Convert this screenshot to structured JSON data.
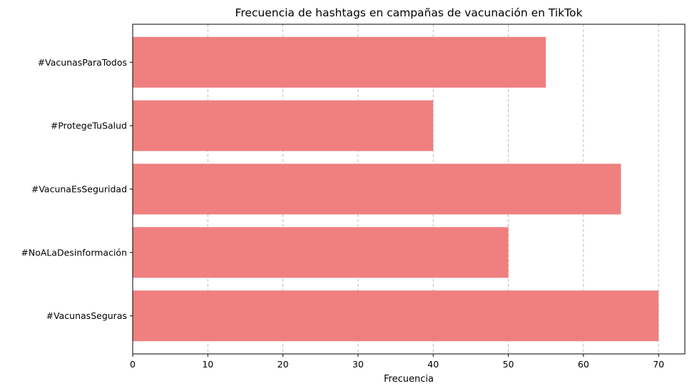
{
  "chart_data": {
    "type": "bar",
    "orientation": "horizontal",
    "title": "Frecuencia de hashtags en campañas de vacunación en TikTok",
    "xlabel": "Frecuencia",
    "ylabel": "",
    "categories": [
      "#VacunasSeguras",
      "#NoALaDesinformación",
      "#VacunaEsSeguridad",
      "#ProtegeTuSalud",
      "#VacunasParaTodos"
    ],
    "values": [
      70,
      50,
      65,
      40,
      55
    ],
    "xlim": [
      0,
      73.5
    ],
    "xticks": [
      0,
      10,
      20,
      30,
      40,
      50,
      60,
      70
    ],
    "grid": "x-dashed",
    "bar_color": "#f08080",
    "grid_color": "#b0b0b0"
  }
}
